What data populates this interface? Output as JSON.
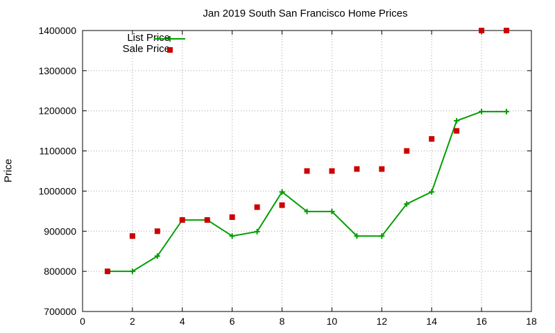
{
  "chart_data": {
    "type": "line",
    "title": "Jan 2019 South San Francisco Home Prices",
    "xlabel": "",
    "ylabel": "Price",
    "xlim": [
      0,
      18
    ],
    "ylim": [
      700000,
      1400000
    ],
    "xticks": [
      0,
      2,
      4,
      6,
      8,
      10,
      12,
      14,
      16,
      18
    ],
    "yticks": [
      700000,
      800000,
      900000,
      1000000,
      1100000,
      1200000,
      1300000,
      1400000
    ],
    "grid": true,
    "legend_position": "top-left",
    "series": [
      {
        "name": "List Price",
        "style": "line with plus markers",
        "color": "#009e00",
        "x": [
          1,
          2,
          3,
          4,
          5,
          6,
          7,
          8,
          9,
          10,
          11,
          12,
          13,
          14,
          15,
          16,
          17
        ],
        "y": [
          800000,
          800000,
          838000,
          928000,
          928000,
          888000,
          899000,
          998000,
          949000,
          949000,
          888000,
          888000,
          968000,
          998000,
          1175000,
          1198000,
          1198000
        ]
      },
      {
        "name": "Sale Price",
        "style": "square markers",
        "color": "#cc0000",
        "x": [
          1,
          2,
          3,
          4,
          5,
          6,
          7,
          8,
          9,
          10,
          11,
          12,
          13,
          14,
          15,
          16,
          17
        ],
        "y": [
          800000,
          888000,
          900000,
          928000,
          928000,
          935000,
          960000,
          965000,
          1050000,
          1050000,
          1055000,
          1055000,
          1100000,
          1130000,
          1150000,
          1400000,
          1400000
        ]
      }
    ]
  }
}
